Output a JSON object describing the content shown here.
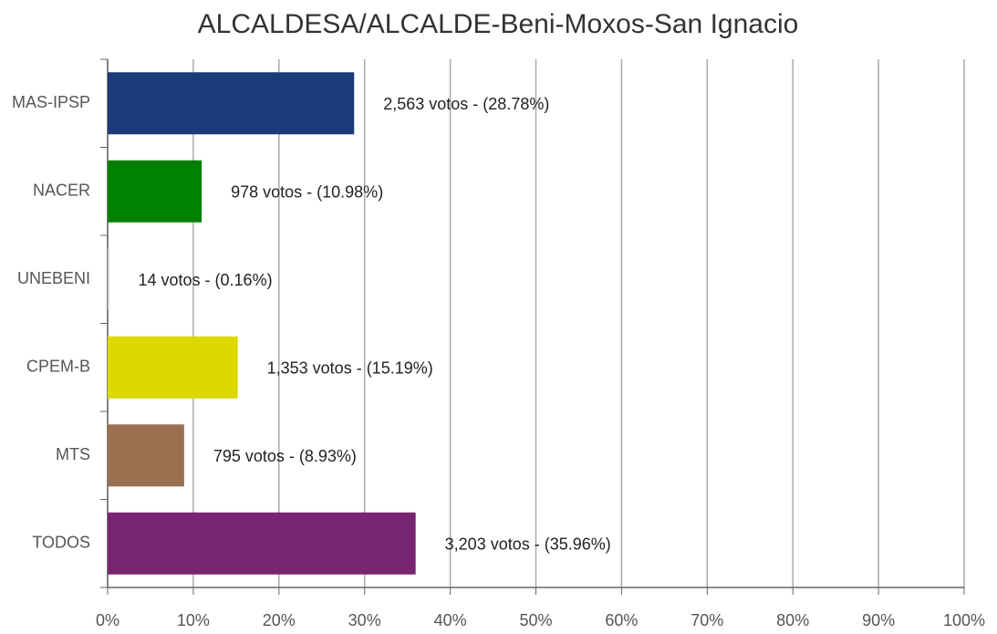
{
  "chart_data": {
    "type": "bar",
    "orientation": "horizontal",
    "title": "ALCALDESA/ALCALDE-Beni-Moxos-San Ignacio",
    "categories": [
      "MAS-IPSP",
      "NACER",
      "UNEBENI",
      "CPEM-B",
      "MTS",
      "TODOS"
    ],
    "values": [
      28.78,
      10.98,
      0.16,
      15.19,
      8.93,
      35.96
    ],
    "value_labels": [
      "2,563 votos - (28.78%)",
      "978 votos - (10.98%)",
      "14 votos - (0.16%)",
      "1,353 votos - (15.19%)",
      "795 votos - (8.93%)",
      "3,203 votos - (35.96%)"
    ],
    "colors": [
      "#1a3a78",
      "#008000",
      "#c0c0c0",
      "#dcd800",
      "#9b7050",
      "#772570"
    ],
    "xlim": [
      0,
      100
    ],
    "xticks": [
      {
        "value": 0,
        "label": "0%"
      },
      {
        "value": 10,
        "label": "10%"
      },
      {
        "value": 20,
        "label": "20%"
      },
      {
        "value": 30,
        "label": "30%"
      },
      {
        "value": 40,
        "label": "40%"
      },
      {
        "value": 50,
        "label": "50%"
      },
      {
        "value": 60,
        "label": "60%"
      },
      {
        "value": 70,
        "label": "70%"
      },
      {
        "value": 80,
        "label": "80%"
      },
      {
        "value": 90,
        "label": "90%"
      },
      {
        "value": 100,
        "label": "100%"
      }
    ],
    "grid": true
  }
}
